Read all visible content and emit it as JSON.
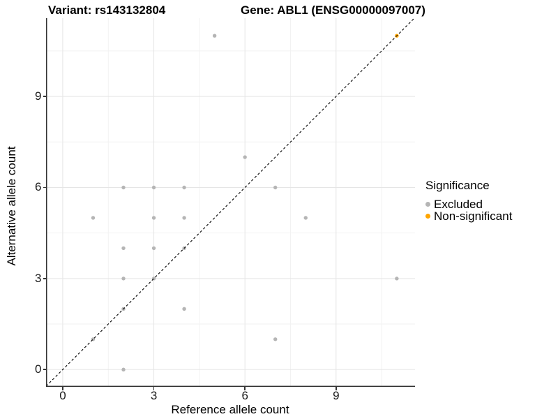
{
  "chart_data": {
    "type": "scatter",
    "title_left": "Variant: rs143132804",
    "title_right": "Gene: ABL1 (ENSG00000097007)",
    "xlabel": "Reference allele count",
    "ylabel": "Alternative allele count",
    "xlim": [
      -0.55,
      11.6
    ],
    "ylim": [
      -0.57,
      11.58
    ],
    "x_ticks": [
      0,
      3,
      6,
      9
    ],
    "y_ticks": [
      0,
      3,
      6,
      9
    ],
    "x_minor_gridlines": [
      1.5,
      4.5,
      7.5,
      10.5
    ],
    "y_minor_gridlines": [
      1.5,
      4.5,
      7.5,
      10.5
    ],
    "grid": "on",
    "identity_line": {
      "slope": 1,
      "intercept": 0,
      "style": "dashed",
      "color": "#000000"
    },
    "series": [
      {
        "name": "Excluded",
        "color": "#b5b5b5",
        "points": [
          [
            5,
            11
          ],
          [
            6,
            7
          ],
          [
            2,
            6
          ],
          [
            3,
            6
          ],
          [
            4,
            6
          ],
          [
            7,
            6
          ],
          [
            1,
            5
          ],
          [
            3,
            5
          ],
          [
            4,
            5
          ],
          [
            8,
            5
          ],
          [
            2,
            4
          ],
          [
            3,
            4
          ],
          [
            4,
            4
          ],
          [
            2,
            3
          ],
          [
            3,
            3
          ],
          [
            11,
            3
          ],
          [
            2,
            2
          ],
          [
            4,
            2
          ],
          [
            1,
            1
          ],
          [
            7,
            1
          ],
          [
            2,
            0
          ]
        ]
      },
      {
        "name": "Non-significant",
        "color": "#ffa500",
        "points": [
          [
            11,
            11
          ]
        ]
      }
    ],
    "legend": {
      "title": "Significance",
      "position": "right",
      "items": [
        {
          "label": "Excluded",
          "color": "#b5b5b5"
        },
        {
          "label": "Non-significant",
          "color": "#ffa500"
        }
      ]
    },
    "colors": {
      "background": "#ffffff",
      "axis_line": "#333333",
      "major_gridline": "#e5e5e5",
      "minor_gridline": "#f2f2f2",
      "tick_text": "#1a1a1a"
    }
  }
}
